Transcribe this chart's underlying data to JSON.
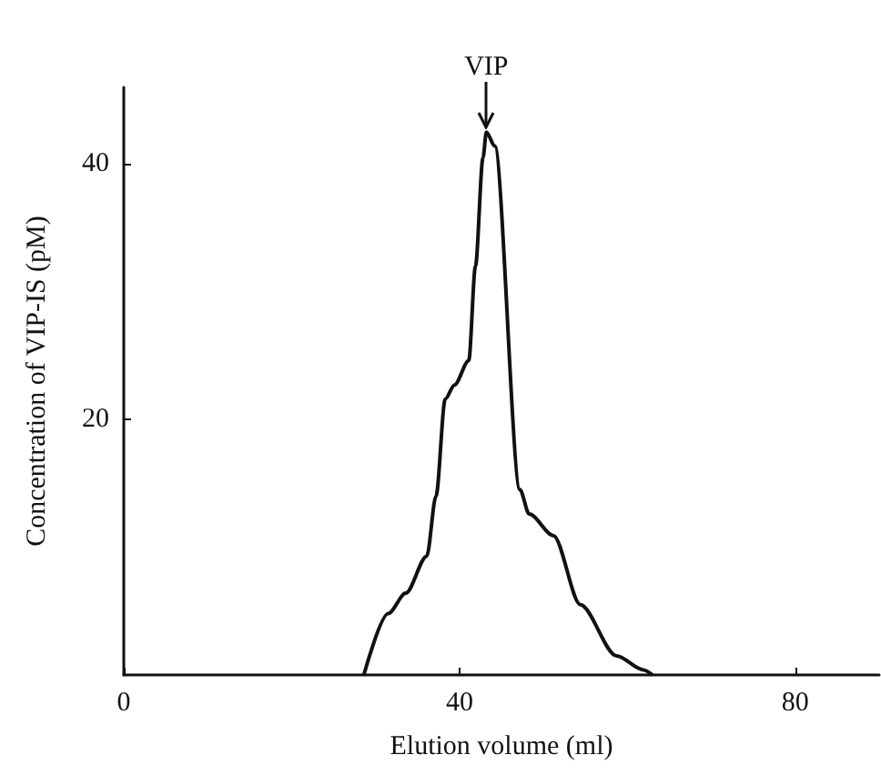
{
  "chart_data": {
    "type": "line",
    "xlabel": "Elution volume (ml)",
    "ylabel": "Concentration of VIP-IS (pM)",
    "x": [
      28.6,
      31.5,
      33.6,
      36.1,
      37.2,
      38.3,
      39.4,
      41.1,
      41.9,
      42.8,
      43.2,
      44.2,
      47.2,
      48.3,
      51.2,
      54.4,
      58.7,
      61.9,
      63
    ],
    "series": [
      {
        "color": "#111111",
        "values": [
          0,
          4.8,
          6.4,
          9.3,
          14,
          21.6,
          22.7,
          24.6,
          32,
          40.5,
          42.5,
          41.4,
          14.5,
          12.6,
          10.9,
          5.5,
          1.5,
          0.4,
          0
        ]
      }
    ],
    "xlim": [
      0,
      90
    ],
    "ylim": [
      0,
      46
    ],
    "xticks": [
      0,
      40,
      80
    ],
    "yticks": [
      20,
      40
    ],
    "annotations": [
      {
        "text": "VIP",
        "x": 43.2,
        "y": 42.5
      }
    ],
    "grid": false,
    "marker": "none",
    "line_style": "solid"
  }
}
